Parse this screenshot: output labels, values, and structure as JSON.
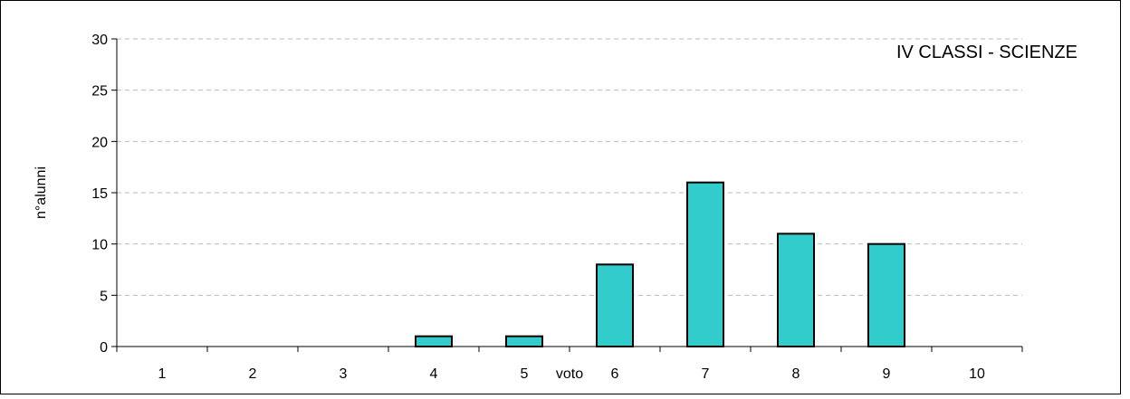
{
  "chart_data": {
    "type": "bar",
    "title": "IV CLASSI - SCIENZE",
    "xlabel": "voto",
    "ylabel": "n°alunni",
    "categories": [
      "1",
      "2",
      "3",
      "4",
      "5",
      "6",
      "7",
      "8",
      "9",
      "10"
    ],
    "values": [
      0,
      0,
      0,
      1,
      1,
      8,
      16,
      11,
      10,
      0
    ],
    "ylim": [
      0,
      30
    ],
    "yticks": [
      "0",
      "5",
      "10",
      "15",
      "20",
      "25",
      "30"
    ],
    "grid": true,
    "legend": "none"
  },
  "colors": {
    "bar_fill": "#33CCCC",
    "bar_stroke": "#000000",
    "grid": "#BBBBBB",
    "axis": "#000000"
  }
}
